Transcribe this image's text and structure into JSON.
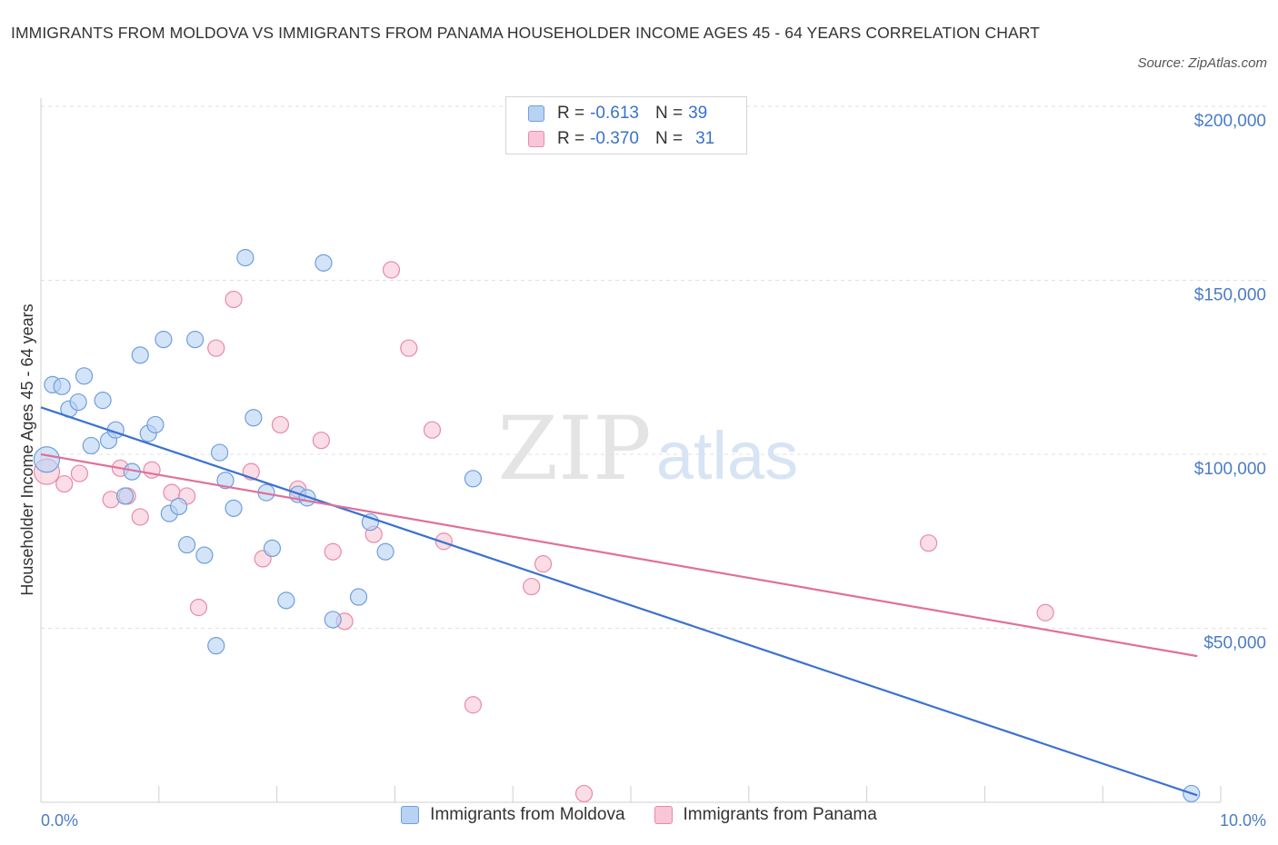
{
  "title": "IMMIGRANTS FROM MOLDOVA VS IMMIGRANTS FROM PANAMA HOUSEHOLDER INCOME AGES 45 - 64 YEARS CORRELATION CHART",
  "source": "Source: ZipAtlas.com",
  "watermark": {
    "zip": "ZIP",
    "atlas": "atlas"
  },
  "legend": {
    "rows": [
      {
        "r_label": "R =",
        "r_value": "-0.613",
        "n_label": "N =",
        "n_value": "39"
      },
      {
        "r_label": "R =",
        "r_value": "-0.370",
        "n_label": "N =",
        "n_value": "31"
      }
    ]
  },
  "colors": {
    "moldova_fill": "#b8d2f4",
    "moldova_stroke": "#6f9fdc",
    "moldova_line": "#3a72d0",
    "panama_fill": "#f8c6d6",
    "panama_stroke": "#e88aaa",
    "panama_line": "#e0709a",
    "grid": "#e0e0e0",
    "axis_label": "#4a7cc7"
  },
  "chart_data": {
    "type": "scatter",
    "title": "IMMIGRANTS FROM MOLDOVA VS IMMIGRANTS FROM PANAMA HOUSEHOLDER INCOME AGES 45 - 64 YEARS CORRELATION CHART",
    "xlabel": "",
    "ylabel": "Householder Income Ages 45 - 64 years",
    "xlim": [
      0,
      10
    ],
    "ylim": [
      0,
      205000
    ],
    "x_tick_labels": [
      "0.0%",
      "10.0%"
    ],
    "y_ticks": [
      50000,
      100000,
      150000,
      200000
    ],
    "y_tick_labels": [
      "$50,000",
      "$100,000",
      "$150,000",
      "$200,000"
    ],
    "grid": true,
    "legend_position": "top-center",
    "series": [
      {
        "name": "Immigrants from Moldova",
        "points": [
          [
            0.05,
            98500
          ],
          [
            0.1,
            120000
          ],
          [
            0.18,
            119500
          ],
          [
            0.24,
            113000
          ],
          [
            0.32,
            115000
          ],
          [
            0.37,
            122500
          ],
          [
            0.43,
            102500
          ],
          [
            0.53,
            115500
          ],
          [
            0.58,
            104000
          ],
          [
            0.64,
            107000
          ],
          [
            0.72,
            88000
          ],
          [
            0.78,
            95000
          ],
          [
            0.85,
            128500
          ],
          [
            0.92,
            106000
          ],
          [
            0.98,
            108500
          ],
          [
            1.05,
            133000
          ],
          [
            1.1,
            83000
          ],
          [
            1.18,
            85000
          ],
          [
            1.25,
            74000
          ],
          [
            1.32,
            133000
          ],
          [
            1.4,
            71000
          ],
          [
            1.5,
            45000
          ],
          [
            1.53,
            100500
          ],
          [
            1.58,
            92500
          ],
          [
            1.65,
            84500
          ],
          [
            1.75,
            156500
          ],
          [
            1.82,
            110500
          ],
          [
            1.93,
            89000
          ],
          [
            1.98,
            73000
          ],
          [
            2.1,
            58000
          ],
          [
            2.2,
            88500
          ],
          [
            2.28,
            87500
          ],
          [
            2.42,
            155000
          ],
          [
            2.5,
            52500
          ],
          [
            2.72,
            59000
          ],
          [
            2.82,
            80500
          ],
          [
            2.95,
            72000
          ],
          [
            3.7,
            93000
          ],
          [
            9.85,
            2500
          ]
        ],
        "trend": {
          "x": [
            0,
            9.9
          ],
          "y": [
            113500,
            2000
          ]
        }
      },
      {
        "name": "Immigrants from Panama",
        "points": [
          [
            0.05,
            95000
          ],
          [
            0.2,
            91500
          ],
          [
            0.33,
            94500
          ],
          [
            0.6,
            87000
          ],
          [
            0.68,
            96000
          ],
          [
            0.74,
            88000
          ],
          [
            0.85,
            82000
          ],
          [
            0.95,
            95500
          ],
          [
            1.12,
            89000
          ],
          [
            1.25,
            88000
          ],
          [
            1.35,
            56000
          ],
          [
            1.5,
            130500
          ],
          [
            1.65,
            144500
          ],
          [
            1.8,
            95000
          ],
          [
            1.9,
            70000
          ],
          [
            2.05,
            108500
          ],
          [
            2.2,
            90000
          ],
          [
            2.4,
            104000
          ],
          [
            2.5,
            72000
          ],
          [
            2.6,
            52000
          ],
          [
            2.85,
            77000
          ],
          [
            3.0,
            153000
          ],
          [
            3.15,
            130500
          ],
          [
            3.35,
            107000
          ],
          [
            3.45,
            75000
          ],
          [
            3.7,
            28000
          ],
          [
            4.2,
            62000
          ],
          [
            4.3,
            68500
          ],
          [
            4.65,
            2500
          ],
          [
            7.6,
            74500
          ],
          [
            8.6,
            54500
          ]
        ],
        "trend": {
          "x": [
            0,
            9.9
          ],
          "y": [
            100000,
            42000
          ]
        }
      }
    ]
  },
  "bottom_legend": [
    "Immigrants from Moldova",
    "Immigrants from Panama"
  ]
}
